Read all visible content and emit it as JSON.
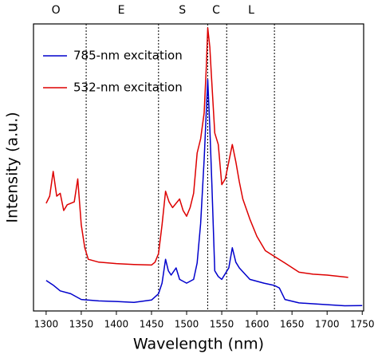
{
  "chart_data": {
    "type": "line",
    "xlabel": "Wavelength (nm)",
    "ylabel": "Intensity (a.u.)",
    "xlim": [
      1282,
      1752
    ],
    "ylim": [
      0,
      100
    ],
    "xticks": [
      1300,
      1350,
      1400,
      1450,
      1500,
      1550,
      1600,
      1650,
      1700,
      1750
    ],
    "legend": "upper left",
    "band_edges": [
      1357,
      1460,
      1530,
      1557,
      1625
    ],
    "bands": [
      {
        "label": "O",
        "x": 1314
      },
      {
        "label": "E",
        "x": 1407
      },
      {
        "label": "S",
        "x": 1494
      },
      {
        "label": "C",
        "x": 1542
      },
      {
        "label": "L",
        "x": 1592
      }
    ],
    "series": [
      {
        "name": "785-nm excitation",
        "color": "#0000cc",
        "x": [
          1300,
          1310,
          1320,
          1335,
          1350,
          1375,
          1400,
          1425,
          1450,
          1460,
          1465,
          1470,
          1474,
          1478,
          1485,
          1490,
          1500,
          1510,
          1515,
          1520,
          1525,
          1530,
          1533,
          1536,
          1540,
          1545,
          1550,
          1560,
          1565,
          1570,
          1575,
          1590,
          1610,
          1625,
          1632,
          1640,
          1660,
          1680,
          1700,
          1725,
          1750
        ],
        "values": [
          10.6,
          9,
          7,
          6,
          4,
          3.5,
          3.3,
          3,
          3.8,
          6,
          9.7,
          18,
          14,
          12.5,
          15,
          11,
          9.7,
          11,
          16.7,
          30.5,
          52.8,
          80.6,
          64,
          44,
          14,
          12,
          11,
          15,
          22,
          17,
          15,
          11,
          9.7,
          8.9,
          8,
          4,
          2.8,
          2.5,
          2.2,
          1.8,
          1.9
        ]
      },
      {
        "name": "532-nm excitation",
        "color": "#dd0000",
        "x": [
          1300,
          1305,
          1310,
          1315,
          1320,
          1325,
          1330,
          1340,
          1345,
          1350,
          1355,
          1360,
          1375,
          1400,
          1425,
          1450,
          1455,
          1460,
          1465,
          1470,
          1475,
          1480,
          1490,
          1495,
          1500,
          1505,
          1510,
          1515,
          1520,
          1525,
          1528,
          1530,
          1533,
          1535,
          1540,
          1545,
          1550,
          1555,
          1560,
          1565,
          1570,
          1575,
          1580,
          1590,
          1600,
          1612,
          1625,
          1640,
          1660,
          1680,
          1700,
          1730
        ],
        "values": [
          37.5,
          40,
          48.6,
          40,
          41,
          35,
          37,
          38,
          46,
          30,
          22,
          18,
          17,
          16.5,
          16.2,
          16,
          17,
          20,
          30,
          41.7,
          38,
          36,
          39,
          35,
          33,
          36,
          41,
          55,
          60,
          69,
          85,
          98.6,
          92,
          83,
          62,
          58,
          44,
          46,
          52,
          58,
          52,
          45,
          39,
          32,
          26,
          21,
          19,
          16.7,
          13.5,
          12.8,
          12.5,
          11.7
        ]
      }
    ]
  }
}
